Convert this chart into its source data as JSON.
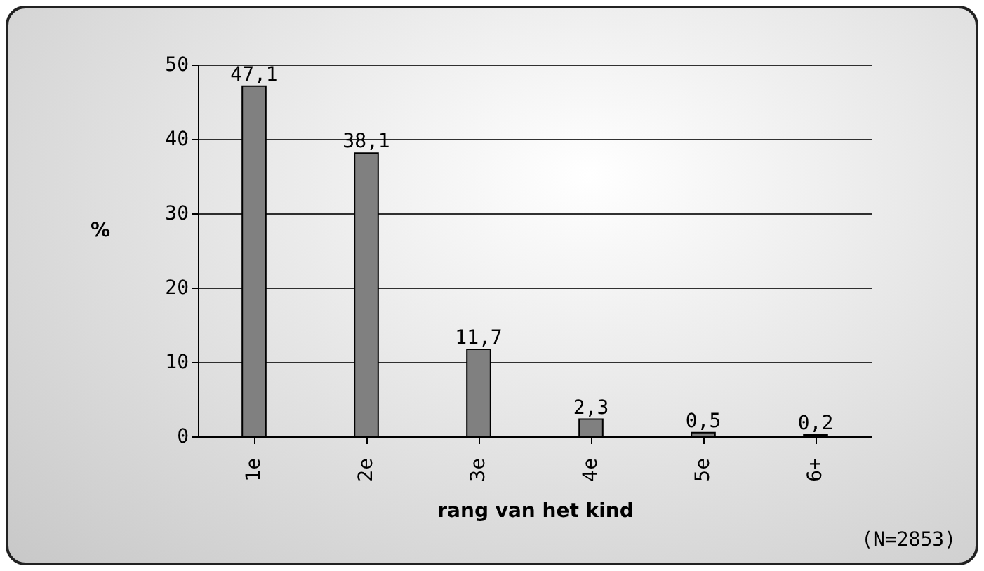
{
  "chart_data": {
    "type": "bar",
    "xlabel": "rang van het kind",
    "ylabel": "%",
    "categories": [
      "1e",
      "2e",
      "3e",
      "4e",
      "5e",
      "6+"
    ],
    "values": [
      47.1,
      38.1,
      11.7,
      2.3,
      0.5,
      0.2
    ],
    "value_labels": [
      "47,1",
      "38,1",
      "11,7",
      "2,3",
      "0,5",
      "0,2"
    ],
    "color": "#808080",
    "ylim": [
      0,
      50
    ],
    "yticks": [
      0,
      10,
      20,
      30,
      40,
      50
    ],
    "grid": "y",
    "annotations": [
      "(N=2853)"
    ]
  }
}
